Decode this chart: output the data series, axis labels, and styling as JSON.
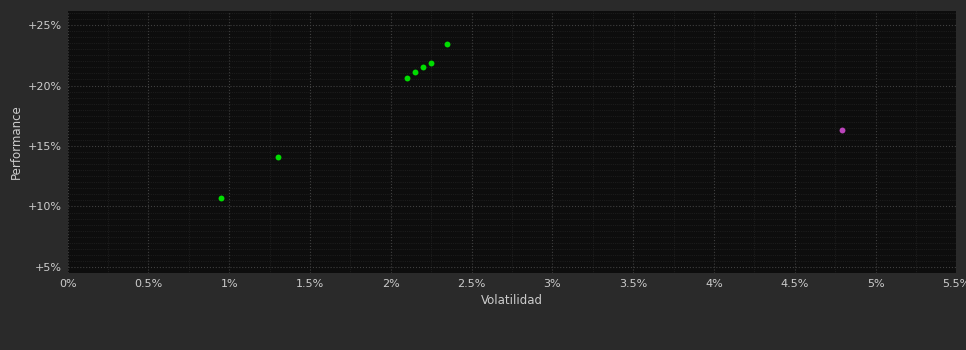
{
  "background_color": "#1a1a1a",
  "plot_bg_color": "#0d0d0d",
  "outer_bg_color": "#2a2a2a",
  "grid_color": "#404040",
  "xlabel": "Volatilidad",
  "ylabel": "Performance",
  "xlabel_color": "#cccccc",
  "ylabel_color": "#cccccc",
  "tick_color": "#cccccc",
  "xlim": [
    0.0,
    0.055
  ],
  "ylim": [
    0.045,
    0.262
  ],
  "xticks": [
    0.0,
    0.005,
    0.01,
    0.015,
    0.02,
    0.025,
    0.03,
    0.035,
    0.04,
    0.045,
    0.05,
    0.055
  ],
  "yticks": [
    0.05,
    0.1,
    0.15,
    0.2,
    0.25
  ],
  "yticks_minor": [
    0.055,
    0.06,
    0.065,
    0.07,
    0.075,
    0.08,
    0.085,
    0.09,
    0.095,
    0.105,
    0.11,
    0.115,
    0.12,
    0.125,
    0.13,
    0.135,
    0.14,
    0.145,
    0.155,
    0.16,
    0.165,
    0.17,
    0.175,
    0.18,
    0.185,
    0.19,
    0.195,
    0.205,
    0.21,
    0.215,
    0.22,
    0.225,
    0.23,
    0.235,
    0.24,
    0.245,
    0.255,
    0.26
  ],
  "xticks_minor": [
    0.0025,
    0.0075,
    0.0125,
    0.0175,
    0.0225,
    0.0275,
    0.0325,
    0.0375,
    0.0425,
    0.0475,
    0.0525
  ],
  "green_points": [
    [
      0.0095,
      0.107
    ],
    [
      0.013,
      0.141
    ],
    [
      0.021,
      0.206
    ],
    [
      0.0215,
      0.211
    ],
    [
      0.022,
      0.215
    ],
    [
      0.0225,
      0.219
    ],
    [
      0.0235,
      0.234
    ]
  ],
  "magenta_points": [
    [
      0.0479,
      0.163
    ]
  ],
  "green_color": "#00dd00",
  "magenta_color": "#bb44bb",
  "marker_size": 18
}
